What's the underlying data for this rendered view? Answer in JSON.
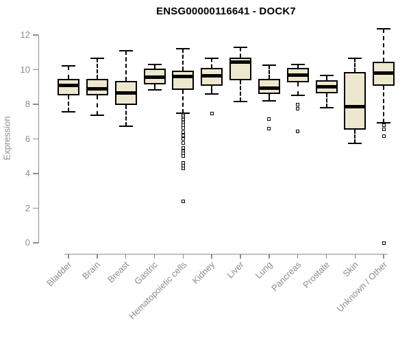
{
  "title": "ENSG00000116641 - DOCK7",
  "chart_data": {
    "type": "boxplot",
    "title": "ENSG00000116641 - DOCK7",
    "xlabel": "",
    "ylabel": "Expression",
    "yticks": [
      0,
      2,
      4,
      6,
      8,
      10,
      12
    ],
    "ylim": [
      0,
      12
    ],
    "grid": false,
    "legend": "none",
    "colors": {
      "box_fill": "#EDE8CD",
      "box_border": "#000000",
      "median": "#000000",
      "axis": "#8C8C8C",
      "title_text": "#000000",
      "background": "#FFFFFF"
    },
    "categories": [
      "Bladder",
      "Brain",
      "Breast",
      "Gastric",
      "Hematopoietic cells",
      "Kidney",
      "Liver",
      "Lung",
      "Pancreas",
      "Prostate",
      "Skin",
      "Unknown / Other"
    ],
    "boxes": [
      {
        "category": "Bladder",
        "whisker_low": 7.55,
        "q1": 8.5,
        "median": 9.1,
        "q3": 9.45,
        "whisker_high": 10.2,
        "outliers": []
      },
      {
        "category": "Brain",
        "whisker_low": 7.35,
        "q1": 8.5,
        "median": 8.9,
        "q3": 9.45,
        "whisker_high": 10.65,
        "outliers": []
      },
      {
        "category": "Breast",
        "whisker_low": 6.75,
        "q1": 7.95,
        "median": 8.65,
        "q3": 9.35,
        "whisker_high": 11.1,
        "outliers": []
      },
      {
        "category": "Gastric",
        "whisker_low": 8.85,
        "q1": 9.15,
        "median": 9.55,
        "q3": 10.05,
        "whisker_high": 10.3,
        "outliers": []
      },
      {
        "category": "Hematopoietic cells",
        "whisker_low": 7.5,
        "q1": 8.85,
        "median": 9.6,
        "q3": 9.95,
        "whisker_high": 11.2,
        "outliers": [
          7.4,
          7.3,
          7.2,
          7.1,
          7.0,
          6.9,
          6.8,
          6.65,
          6.4,
          6.2,
          6.0,
          5.75,
          5.5,
          5.3,
          5.15,
          5.0,
          4.6,
          4.45,
          4.3,
          2.4
        ]
      },
      {
        "category": "Kidney",
        "whisker_low": 8.6,
        "q1": 9.05,
        "median": 9.65,
        "q3": 10.1,
        "whisker_high": 10.65,
        "outliers": [
          7.45
        ]
      },
      {
        "category": "Liver",
        "whisker_low": 8.15,
        "q1": 9.4,
        "median": 10.45,
        "q3": 10.7,
        "whisker_high": 11.3,
        "outliers": []
      },
      {
        "category": "Lung",
        "whisker_low": 8.2,
        "q1": 8.6,
        "median": 8.95,
        "q3": 9.45,
        "whisker_high": 10.25,
        "outliers": [
          7.15,
          6.6
        ]
      },
      {
        "category": "Pancreas",
        "whisker_low": 8.5,
        "q1": 9.25,
        "median": 9.7,
        "q3": 10.1,
        "whisker_high": 10.3,
        "outliers": [
          8.0,
          7.75,
          6.45
        ]
      },
      {
        "category": "Prostate",
        "whisker_low": 7.8,
        "q1": 8.65,
        "median": 9.0,
        "q3": 9.4,
        "whisker_high": 9.65,
        "outliers": []
      },
      {
        "category": "Skin",
        "whisker_low": 5.75,
        "q1": 6.55,
        "median": 7.85,
        "q3": 9.85,
        "whisker_high": 10.65,
        "outliers": []
      },
      {
        "category": "Unknown / Other",
        "whisker_low": 6.95,
        "q1": 9.05,
        "median": 9.8,
        "q3": 10.45,
        "whisker_high": 12.35,
        "outliers": [
          6.8,
          6.55,
          6.15,
          0.0
        ]
      }
    ]
  }
}
